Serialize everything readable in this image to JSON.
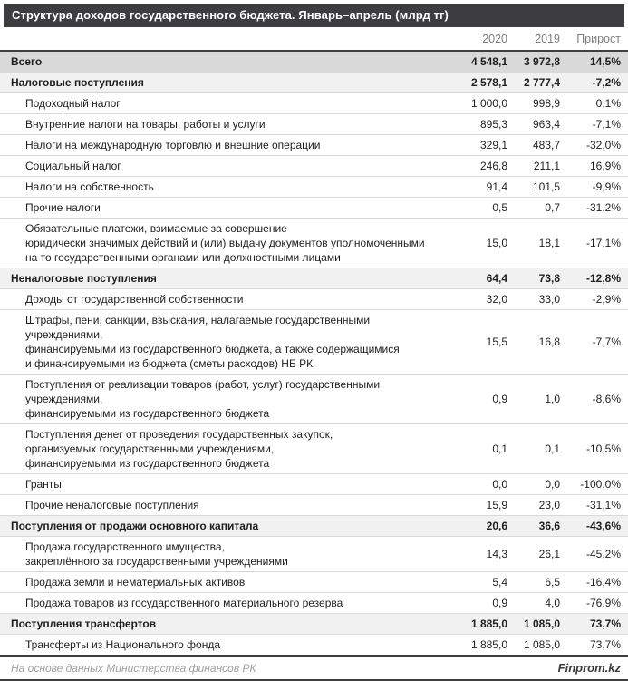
{
  "title": "Структура доходов государственного бюджета. Январь–апрель (млрд тг)",
  "footer": {
    "source": "На основе данных Министерства финансов РК",
    "brand": "Finprom.kz"
  },
  "colors": {
    "title_bar_bg": "#3d3d3f",
    "title_text": "#ffffff",
    "total_row_bg": "#d9d9d9",
    "section_row_bg": "#f1f1f1",
    "border_dark": "#3f3f3f",
    "border_light": "#d8d8d8",
    "header_text": "#7f7f7f"
  },
  "chart_data": {
    "type": "table",
    "title": "Структура доходов государственного бюджета. Январь–апрель (млрд тг)",
    "columns": [
      "2020",
      "2019",
      "Прирост"
    ],
    "rows": [
      {
        "label": "Всего",
        "v2020": "4 548,1",
        "v2019": "3 972,8",
        "growth": "14,5%",
        "type": "total"
      },
      {
        "label": "Налоговые поступления",
        "v2020": "2 578,1",
        "v2019": "2 777,4",
        "growth": "-7,2%",
        "type": "section"
      },
      {
        "label": "Подоходный налог",
        "v2020": "1 000,0",
        "v2019": "998,9",
        "growth": "0,1%",
        "type": "item"
      },
      {
        "label": "Внутренние налоги на товары, работы и услуги",
        "v2020": "895,3",
        "v2019": "963,4",
        "growth": "-7,1%",
        "type": "item"
      },
      {
        "label": "Налоги на международную торговлю и внешние операции",
        "v2020": "329,1",
        "v2019": "483,7",
        "growth": "-32,0%",
        "type": "item"
      },
      {
        "label": "Социальный налог",
        "v2020": "246,8",
        "v2019": "211,1",
        "growth": "16,9%",
        "type": "item"
      },
      {
        "label": "Налоги на собственность",
        "v2020": "91,4",
        "v2019": "101,5",
        "growth": "-9,9%",
        "type": "item"
      },
      {
        "label": "Прочие налоги",
        "v2020": "0,5",
        "v2019": "0,7",
        "growth": "-31,2%",
        "type": "item"
      },
      {
        "label": "Обязательные платежи, взимаемые за совершение\nюридически значимых действий и (или) выдачу документов уполномоченными\nна то государственными органами или должностными лицами",
        "v2020": "15,0",
        "v2019": "18,1",
        "growth": "-17,1%",
        "type": "item"
      },
      {
        "label": "Неналоговые поступления",
        "v2020": "64,4",
        "v2019": "73,8",
        "growth": "-12,8%",
        "type": "section"
      },
      {
        "label": "Доходы от государственной собственности",
        "v2020": "32,0",
        "v2019": "33,0",
        "growth": "-2,9%",
        "type": "item"
      },
      {
        "label": "Штрафы, пени, санкции, взыскания, налагаемые государственными учреждениями,\nфинансируемыми из государственного бюджета, а также содержащимися\nи финансируемыми из бюджета (сметы расходов) НБ РК",
        "v2020": "15,5",
        "v2019": "16,8",
        "growth": "-7,7%",
        "type": "item"
      },
      {
        "label": "Поступления от реализации товаров (работ, услуг) государственными учреждениями,\nфинансируемыми из государственного бюджета",
        "v2020": "0,9",
        "v2019": "1,0",
        "growth": "-8,6%",
        "type": "item"
      },
      {
        "label": "Поступления денег от проведения государственных закупок,\nорганизуемых государственными учреждениями,\nфинансируемыми из государственного бюджета",
        "v2020": "0,1",
        "v2019": "0,1",
        "growth": "-10,5%",
        "type": "item"
      },
      {
        "label": "Гранты",
        "v2020": "0,0",
        "v2019": "0,0",
        "growth": "-100,0%",
        "type": "item"
      },
      {
        "label": "Прочие неналоговые поступления",
        "v2020": "15,9",
        "v2019": "23,0",
        "growth": "-31,1%",
        "type": "item"
      },
      {
        "label": "Поступления от продажи основного капитала",
        "v2020": "20,6",
        "v2019": "36,6",
        "growth": "-43,6%",
        "type": "section"
      },
      {
        "label": "Продажа государственного имущества,\nзакреплённого за государственными учреждениями",
        "v2020": "14,3",
        "v2019": "26,1",
        "growth": "-45,2%",
        "type": "item"
      },
      {
        "label": "Продажа земли и нематериальных активов",
        "v2020": "5,4",
        "v2019": "6,5",
        "growth": "-16,4%",
        "type": "item"
      },
      {
        "label": "Продажа товаров из государственного материального резерва",
        "v2020": "0,9",
        "v2019": "4,0",
        "growth": "-76,9%",
        "type": "item"
      },
      {
        "label": "Поступления трансфертов",
        "v2020": "1 885,0",
        "v2019": "1 085,0",
        "growth": "73,7%",
        "type": "section"
      },
      {
        "label": "Трансферты из Национального фонда",
        "v2020": "1 885,0",
        "v2019": "1 085,0",
        "growth": "73,7%",
        "type": "item"
      }
    ]
  }
}
